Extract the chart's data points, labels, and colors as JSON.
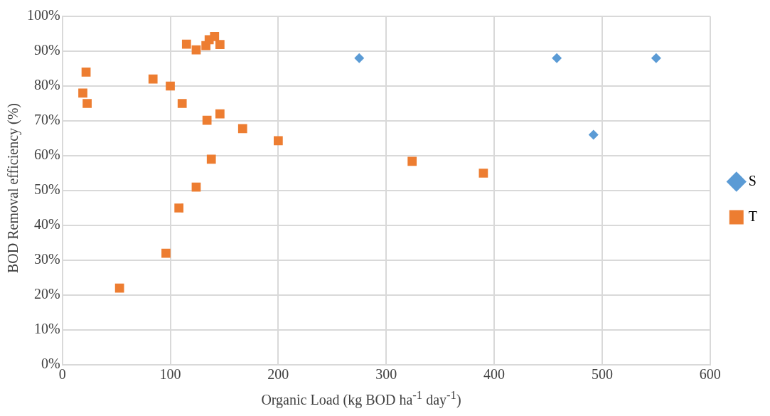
{
  "chart_data": {
    "type": "scatter",
    "xlabel": "Organic Load (kg BOD ha$^{-1}$ day$^{-1}$)",
    "ylabel": "BOD Removal efficiency (%)",
    "xlim": [
      0,
      600
    ],
    "xticks": [
      0,
      100,
      200,
      300,
      400,
      500,
      600
    ],
    "ylim": [
      0,
      100
    ],
    "yticks": [
      {
        "value": 0,
        "label": "0%"
      },
      {
        "value": 10,
        "label": "10%"
      },
      {
        "value": 20,
        "label": "20%"
      },
      {
        "value": 30,
        "label": "30%"
      },
      {
        "value": 40,
        "label": "40%"
      },
      {
        "value": 50,
        "label": "50%"
      },
      {
        "value": 60,
        "label": "60%"
      },
      {
        "value": 70,
        "label": "70%"
      },
      {
        "value": 80,
        "label": "80%"
      },
      {
        "value": 90,
        "label": "90%"
      },
      {
        "value": 100,
        "label": "100%"
      }
    ],
    "grid": true,
    "legend": "right",
    "series": [
      {
        "name": "S",
        "color": "#5b9bd5",
        "marker": "diamond",
        "x": [
          275,
          458,
          492,
          550
        ],
        "values": [
          88,
          88,
          66,
          88
        ]
      },
      {
        "name": "T",
        "color": "#ed7d31",
        "marker": "square",
        "x": [
          19,
          22,
          23,
          84,
          100,
          111,
          115,
          124,
          133,
          136,
          141,
          146,
          134,
          146,
          167,
          200,
          138,
          124,
          108,
          96,
          53,
          324,
          390
        ],
        "values": [
          78,
          84,
          75,
          82,
          80,
          75,
          92,
          90.4,
          91.6,
          93.3,
          94.2,
          91.9,
          70.2,
          72,
          67.8,
          64.3,
          59,
          51,
          45,
          32,
          22,
          58.4,
          55
        ]
      }
    ]
  }
}
